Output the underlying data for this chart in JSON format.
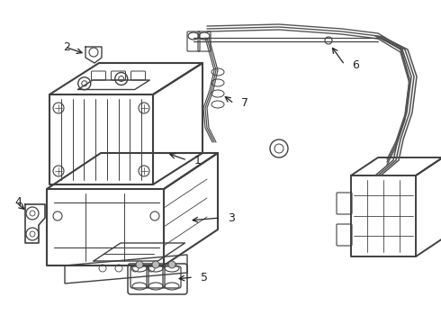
{
  "bg_color": "#ffffff",
  "line_color": "#404040",
  "label_color": "#222222",
  "fig_width": 4.9,
  "fig_height": 3.6,
  "dpi": 100
}
